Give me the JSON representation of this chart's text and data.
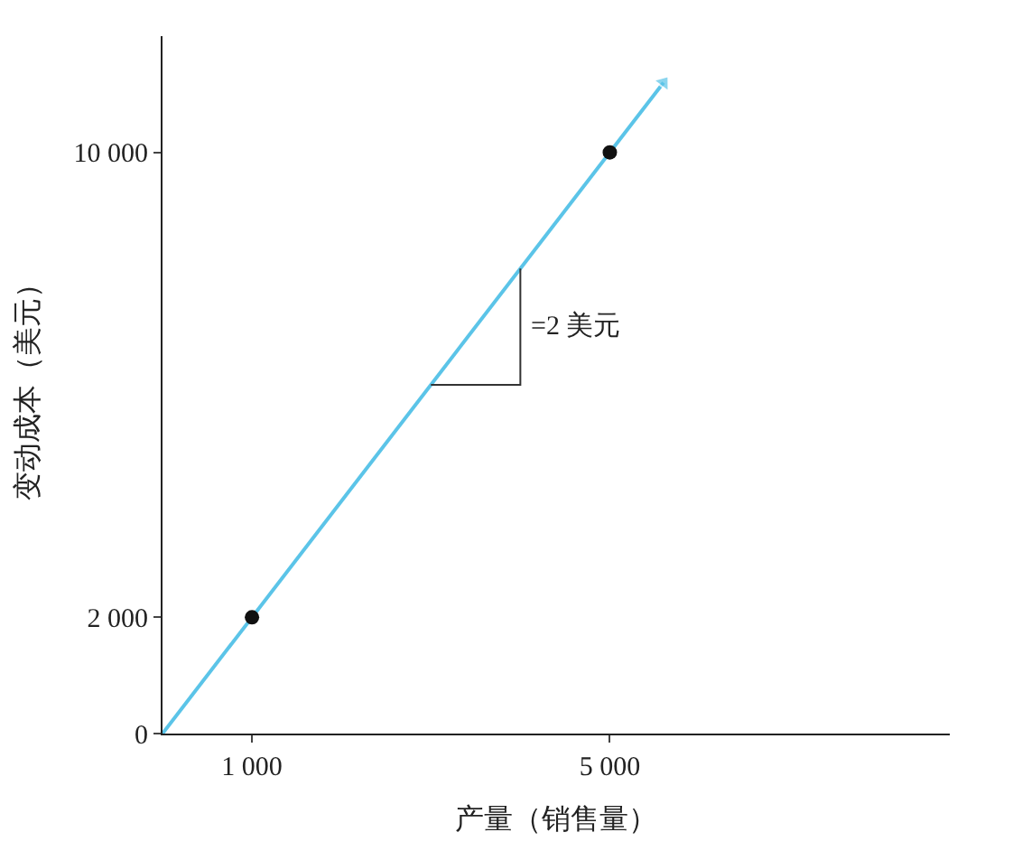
{
  "chart_data": {
    "type": "line",
    "xlabel": "产量（销售量）",
    "ylabel": "变动成本（美元）",
    "xlim": [
      0,
      8800
    ],
    "ylim": [
      0,
      12000
    ],
    "xticks": [
      {
        "value": 1000,
        "label": "1 000"
      },
      {
        "value": 5000,
        "label": "5 000"
      }
    ],
    "yticks": [
      0,
      {
        "value": 2000,
        "label": "2 000"
      },
      {
        "value": 10000,
        "label": "10 000"
      }
    ],
    "series": [
      {
        "color": "#5bc4e8",
        "x": [
          0,
          5600
        ],
        "values": [
          0,
          11200
        ]
      },
      {
        "type": "scatter",
        "color": "#111111",
        "x": [
          1000,
          5000
        ],
        "values": [
          2000,
          10000
        ],
        "marker": "circle"
      },
      {
        "color": "#333333",
        "x": [
          3000,
          4000,
          4000
        ],
        "values": [
          6000,
          6000,
          8000
        ],
        "marker": "none"
      }
    ],
    "annotations": [
      {
        "text": "=2 美元",
        "x": 4000,
        "y": 7000
      }
    ]
  }
}
